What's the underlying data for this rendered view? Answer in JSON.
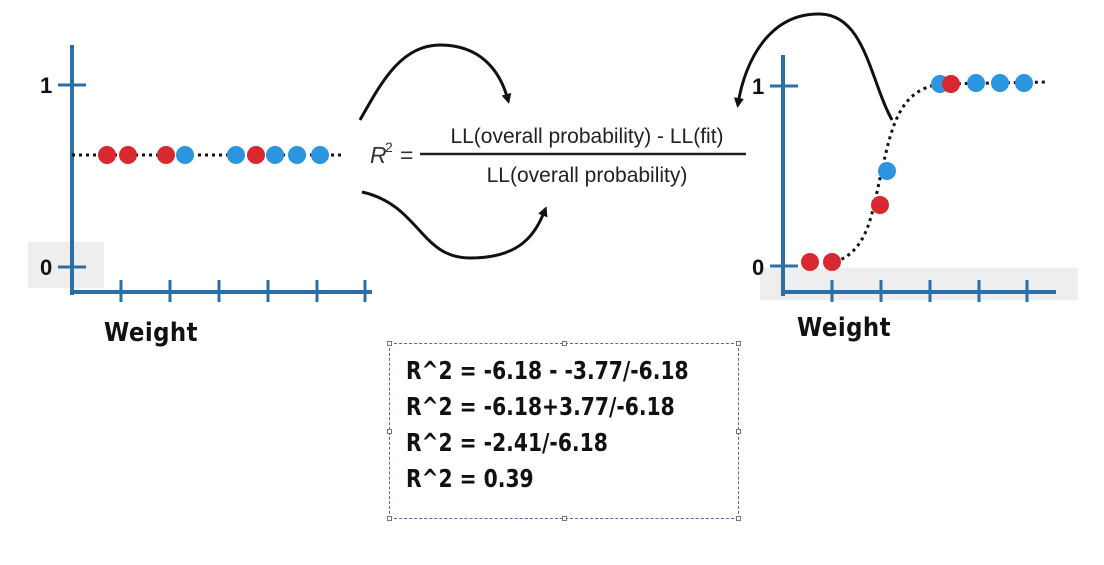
{
  "left_plot": {
    "tick_1": "1",
    "tick_0": "0",
    "xlabel": "Weight",
    "dots": [
      "#d9282f",
      "#d9282f",
      "#d9282f",
      "#2b95e0",
      "#2b95e0",
      "#d9282f",
      "#2b95e0",
      "#2b95e0",
      "#2b95e0"
    ]
  },
  "right_plot": {
    "tick_1": "1",
    "tick_0": "0",
    "xlabel": "Weight"
  },
  "formula": {
    "lhs_base": "R",
    "lhs_exp": "2",
    "equals": "=",
    "numerator": "LL(overall probability) - LL(fit)",
    "denominator": "LL(overall probability)"
  },
  "calculation": {
    "lines": [
      "R^2 = -6.18  -  -3.77/-6.18",
      "R^2 = -6.18+3.77/-6.18",
      "R^2 = -2.41/-6.18",
      "R^2 = 0.39"
    ]
  },
  "colors": {
    "axis": "#2a6fa8",
    "red_dot": "#d9282f",
    "blue_dot": "#2b95e0",
    "text": "#111111"
  }
}
